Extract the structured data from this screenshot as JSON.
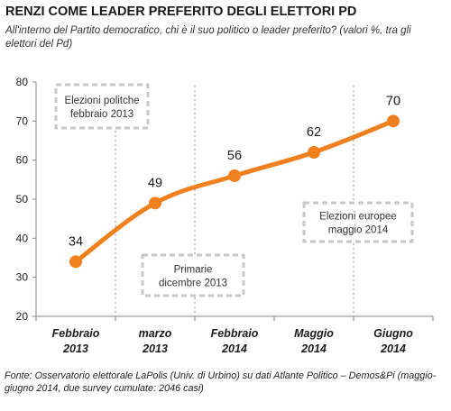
{
  "header": {
    "title": "RENZI COME LEADER PREFERITO DEGLI ELETTORI PD",
    "subtitle": "All'interno del Partito democratico, chi è il suo politico o leader preferito? (valori %, tra gli elettori del Pd)"
  },
  "footer": {
    "source": "Fonte: Osservatorio elettorale LaPolis (Univ. di Urbino) su dati Atlante Politico – Demos&Pi (maggio-giugno 2014, due survey cumulate: 2046 casi)"
  },
  "colors": {
    "line": "#f07f1e",
    "marker": "#f07f1e",
    "annotation_border": "#c8c8c8",
    "annotation_text": "#333333",
    "axis": "#888888"
  },
  "chart_data": {
    "type": "line",
    "categories": [
      [
        "Febbraio",
        "2013"
      ],
      [
        "marzo",
        "2013"
      ],
      [
        "Febbraio",
        "2014"
      ],
      [
        "Maggio",
        "2014"
      ],
      [
        "Giugno",
        "2014"
      ]
    ],
    "values": [
      34,
      49,
      56,
      62,
      70
    ],
    "data_labels": [
      "34",
      "49",
      "56",
      "62",
      "70"
    ],
    "ylim": [
      20,
      80
    ],
    "yticks": [
      20,
      30,
      40,
      50,
      60,
      70,
      80
    ],
    "grid": false,
    "legend": "none",
    "annotations": [
      {
        "lines": [
          "Elezioni politche",
          "febbraio 2013"
        ]
      },
      {
        "lines": [
          "Primarie",
          "dicembre 2013"
        ]
      },
      {
        "lines": [
          "Elezioni europee",
          "maggio 2014"
        ]
      }
    ],
    "event_markers": [
      "between Febbraio 2013 and marzo 2013",
      "between marzo 2013 and Febbraio 2014",
      "between Maggio 2014 and Giugno 2014"
    ]
  }
}
